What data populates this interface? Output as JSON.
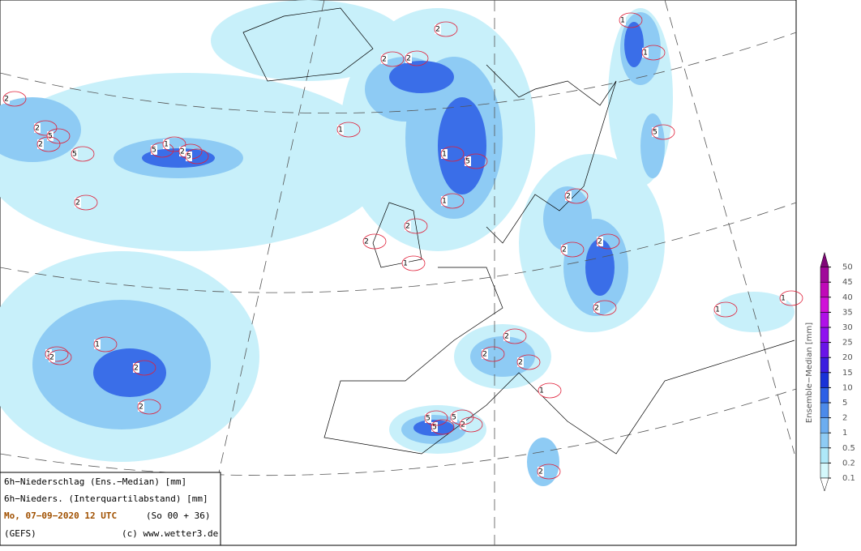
{
  "legend": {
    "lines": [
      "6h−Niederschlag (Ens.−Median) [mm]",
      "6h−Nieders. (Interquartilabstand) [mm]",
      "Mo, 07−09−2020  12 UTC",
      "(So 00 + 36)",
      "(GEFS)",
      "(c) www.wetter3.de"
    ]
  },
  "colorbar": {
    "title": "Ensemble−Median [mm]",
    "levels": [
      0.1,
      0.2,
      0.5,
      1,
      2,
      5,
      10,
      15,
      20,
      25,
      30,
      35,
      40,
      45,
      50
    ],
    "colors": [
      "#d4f8fc",
      "#aee8f8",
      "#8ecbf4",
      "#6cadf0",
      "#4c8aea",
      "#2c60e6",
      "#1a32d8",
      "#3c1ee0",
      "#6a14e8",
      "#9010f0",
      "#b010e8",
      "#d010d8",
      "#c00ab8",
      "#a0089a"
    ],
    "under_color": "#ffffff",
    "over_color": "#800878"
  },
  "contour_labels": [
    "2",
    "2",
    "5",
    "5",
    "5",
    "1",
    "2",
    "5",
    "2",
    "2",
    "1",
    "2",
    "2",
    "1",
    "2",
    "2",
    "2",
    "2",
    "1",
    "5",
    "1",
    "1",
    "2",
    "2",
    "1",
    "2",
    "2",
    "1",
    "5",
    "2",
    "2",
    "2",
    "2",
    "2",
    "1",
    "1",
    "2",
    "5",
    "2",
    "5",
    "5",
    "1",
    "1"
  ]
}
